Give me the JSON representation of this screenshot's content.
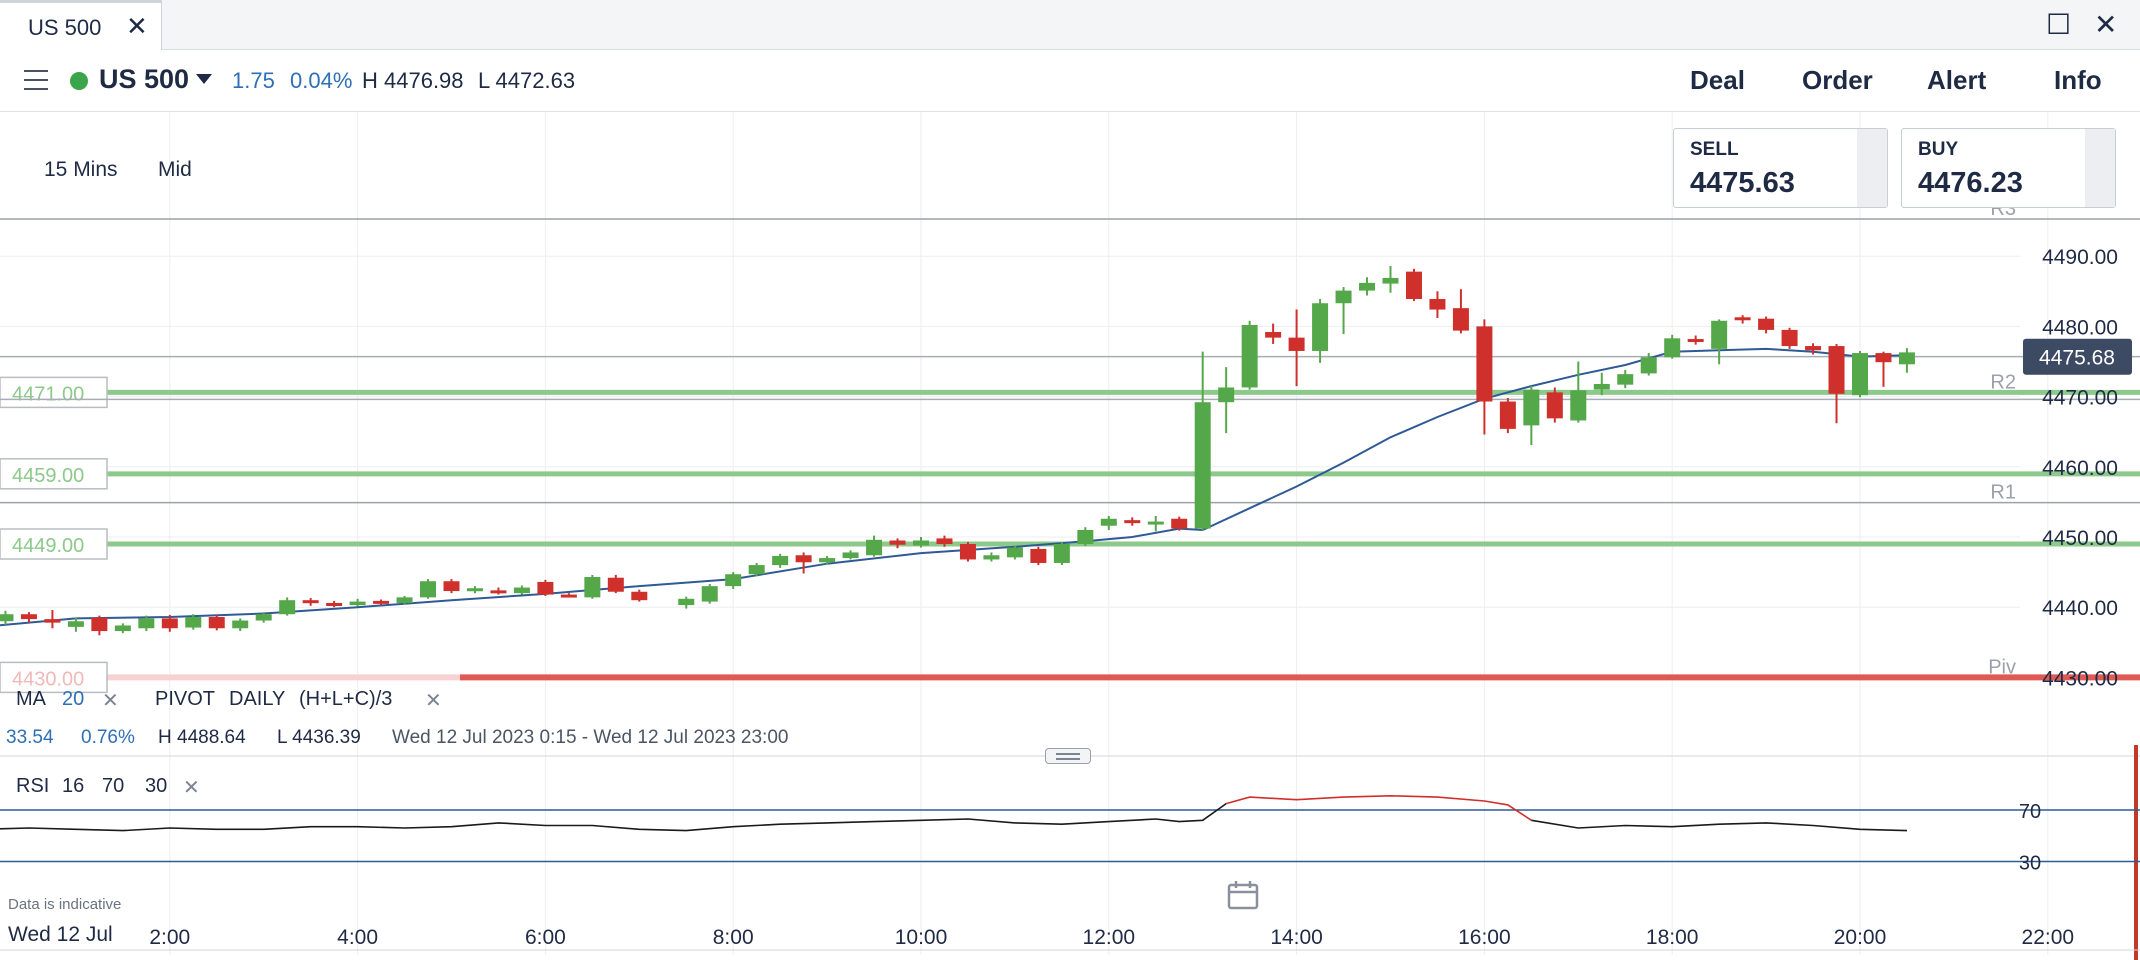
{
  "window": {
    "tab_title": "US 500",
    "close_glyph": "✕",
    "maximize_glyph": "☐",
    "window_close_glyph": "✕"
  },
  "toolbar": {
    "instrument": "US 500",
    "change": "1.75",
    "change_pct": "0.04%",
    "high": "H 4476.98",
    "low": "L 4472.63",
    "actions": [
      "Deal",
      "Order",
      "Alert",
      "Info"
    ]
  },
  "chart_settings": {
    "interval": "15 Mins",
    "price_type": "Mid"
  },
  "quotes": {
    "sell_label": "SELL",
    "sell_price": "4475.63",
    "buy_label": "BUY",
    "buy_price": "4476.23"
  },
  "indicators": {
    "ma_label": "MA",
    "ma_period": "20",
    "pivot_label": "PIVOT",
    "pivot_period": "DAILY",
    "pivot_formula": "(H+L+C)/3",
    "remove_glyph": "✕"
  },
  "stats": {
    "change": "33.54",
    "change_pct": "0.76%",
    "high": "H 4488.64",
    "low": "L 4436.39",
    "range": "Wed 12 Jul 2023 0:15 - Wed 12 Jul 2023 23:00"
  },
  "rsi": {
    "label": "RSI",
    "period": "16",
    "upper": "70",
    "lower": "30"
  },
  "footer": {
    "indicative": "Data is indicative",
    "date": "Wed 12 Jul"
  },
  "colors": {
    "up": "#55a84a",
    "down": "#d0302b",
    "ma": "#2f5a96",
    "pivot_green": "#8cc98a",
    "pivot_red": "#e05a55",
    "rsi": "#1a1a1a",
    "rsi_overbought": "#d0302b"
  },
  "chart_data": {
    "type": "candlestick",
    "time_ticks": [
      "2:00",
      "4:00",
      "6:00",
      "8:00",
      "10:00",
      "12:00",
      "14:00",
      "16:00",
      "18:00",
      "20:00",
      "22:00"
    ],
    "y_ticks": [
      "4490.00",
      "4480.00",
      "4470.00",
      "4460.00",
      "4450.00",
      "4440.00",
      "4430.00"
    ],
    "current_price": "4475.68",
    "ylim": [
      4425,
      4500
    ],
    "pivot_levels": [
      {
        "name": "R3",
        "value": 4495.3
      },
      {
        "name": "R2",
        "value": 4470.6,
        "tag": "4471.00",
        "color": "green"
      },
      {
        "name": "",
        "value": 4459.0,
        "tag": "4459.00",
        "color": "green"
      },
      {
        "name": "R1",
        "value": 4454.9
      },
      {
        "name": "",
        "value": 4449.0,
        "tag": "4449.00",
        "color": "green"
      },
      {
        "name": "Piv",
        "value": 4430.0,
        "tag": "4430.00",
        "color": "red"
      }
    ],
    "candles": [
      [
        0.0,
        4441.5,
        4437.5,
        4442.0,
        4437.0
      ],
      [
        0.25,
        4438.0,
        4439.0,
        4439.5,
        4437.5
      ],
      [
        0.5,
        4439.0,
        4438.3,
        4439.3,
        4437.8
      ],
      [
        0.75,
        4438.3,
        4437.8,
        4439.6,
        4437.0
      ],
      [
        1.0,
        4437.2,
        4438.0,
        4438.5,
        4436.5
      ],
      [
        1.25,
        4438.5,
        4436.6,
        4438.8,
        4436.0
      ],
      [
        1.5,
        4436.6,
        4437.4,
        4437.7,
        4436.3
      ],
      [
        1.75,
        4437.0,
        4438.4,
        4438.8,
        4436.6
      ],
      [
        2.0,
        4438.4,
        4437.0,
        4438.9,
        4436.5
      ],
      [
        2.25,
        4437.1,
        4438.6,
        4439.0,
        4436.8
      ],
      [
        2.5,
        4438.6,
        4437.0,
        4438.9,
        4436.7
      ],
      [
        2.75,
        4437.0,
        4438.1,
        4438.4,
        4436.6
      ],
      [
        3.0,
        4438.1,
        4439.0,
        4439.3,
        4437.8
      ],
      [
        3.25,
        4439.0,
        4441.0,
        4441.4,
        4438.8
      ],
      [
        3.5,
        4441.0,
        4440.6,
        4441.3,
        4440.2
      ],
      [
        3.75,
        4440.6,
        4440.3,
        4440.9,
        4440.0
      ],
      [
        4.0,
        4440.3,
        4440.8,
        4441.2,
        4440.1
      ],
      [
        4.25,
        4440.9,
        4440.6,
        4441.1,
        4440.3
      ],
      [
        4.5,
        4440.6,
        4441.4,
        4441.6,
        4440.4
      ],
      [
        4.75,
        4441.4,
        4443.7,
        4444.0,
        4441.2
      ],
      [
        5.0,
        4443.7,
        4442.3,
        4444.0,
        4442.0
      ],
      [
        5.25,
        4442.3,
        4442.7,
        4443.0,
        4442.0
      ],
      [
        5.5,
        4442.4,
        4442.0,
        4442.8,
        4441.8
      ],
      [
        5.75,
        4442.0,
        4442.8,
        4443.1,
        4441.8
      ],
      [
        6.0,
        4443.6,
        4441.8,
        4443.9,
        4441.6
      ],
      [
        6.25,
        4441.8,
        4441.6,
        4442.0,
        4441.4
      ],
      [
        6.5,
        4441.4,
        4444.3,
        4444.6,
        4441.2
      ],
      [
        6.75,
        4444.2,
        4442.2,
        4444.6,
        4442.0
      ],
      [
        7.0,
        4442.2,
        4441.0,
        4442.5,
        4440.8
      ],
      [
        7.5,
        4440.3,
        4441.2,
        4441.5,
        4439.8
      ],
      [
        7.75,
        4440.8,
        4443.0,
        4443.3,
        4440.5
      ],
      [
        8.0,
        4443.0,
        4444.7,
        4445.0,
        4442.6
      ],
      [
        8.25,
        4444.7,
        4446.0,
        4446.3,
        4444.4
      ],
      [
        8.5,
        4446.0,
        4447.3,
        4447.6,
        4445.6
      ],
      [
        8.75,
        4447.4,
        4446.4,
        4447.8,
        4444.8
      ],
      [
        9.0,
        4446.4,
        4447.0,
        4447.3,
        4446.1
      ],
      [
        9.25,
        4447.0,
        4447.8,
        4448.1,
        4446.8
      ],
      [
        9.5,
        4447.4,
        4449.6,
        4450.2,
        4447.2
      ],
      [
        9.75,
        4449.5,
        4448.9,
        4449.8,
        4448.4
      ],
      [
        10.0,
        4448.8,
        4449.5,
        4450.0,
        4448.5
      ],
      [
        10.25,
        4449.8,
        4449.0,
        4450.2,
        4448.6
      ],
      [
        10.5,
        4449.0,
        4446.8,
        4449.3,
        4446.5
      ],
      [
        10.75,
        4446.8,
        4447.4,
        4447.8,
        4446.5
      ],
      [
        11.0,
        4447.1,
        4448.5,
        4448.8,
        4446.8
      ],
      [
        11.25,
        4448.3,
        4446.3,
        4448.6,
        4446.0
      ],
      [
        11.5,
        4446.3,
        4449.0,
        4449.3,
        4446.0
      ],
      [
        11.75,
        4449.0,
        4451.0,
        4451.4,
        4448.7
      ],
      [
        12.0,
        4451.6,
        4452.6,
        4453.0,
        4451.0
      ],
      [
        12.25,
        4452.4,
        4452.0,
        4452.8,
        4451.6
      ],
      [
        12.5,
        4452.0,
        4452.2,
        4453.0,
        4450.8
      ],
      [
        12.75,
        4452.6,
        4451.2,
        4452.9,
        4450.9
      ],
      [
        13.0,
        4451.2,
        4469.2,
        4476.4,
        4450.9
      ],
      [
        13.25,
        4469.2,
        4471.3,
        4474.2,
        4464.8
      ],
      [
        13.5,
        4471.3,
        4480.2,
        4480.8,
        4471.0
      ],
      [
        13.75,
        4479.2,
        4478.4,
        4480.4,
        4477.5
      ],
      [
        14.0,
        4478.4,
        4476.5,
        4482.4,
        4471.5
      ],
      [
        14.25,
        4476.5,
        4483.3,
        4483.9,
        4474.8
      ],
      [
        14.5,
        4483.3,
        4485.1,
        4485.6,
        4478.9
      ],
      [
        14.75,
        4485.1,
        4486.2,
        4487.0,
        4484.4
      ],
      [
        15.0,
        4486.1,
        4486.9,
        4488.6,
        4484.8
      ],
      [
        15.25,
        4487.8,
        4483.9,
        4488.2,
        4483.6
      ],
      [
        15.5,
        4483.9,
        4482.4,
        4485.0,
        4481.2
      ],
      [
        15.75,
        4482.6,
        4479.4,
        4485.3,
        4479.0
      ],
      [
        16.0,
        4480.0,
        4469.3,
        4481.0,
        4464.6
      ],
      [
        16.25,
        4469.3,
        4465.4,
        4469.8,
        4464.8
      ],
      [
        16.5,
        4465.9,
        4471.0,
        4471.5,
        4463.1
      ],
      [
        16.75,
        4470.6,
        4466.9,
        4471.3,
        4466.3
      ],
      [
        17.0,
        4466.6,
        4470.9,
        4475.0,
        4466.3
      ],
      [
        17.25,
        4471.0,
        4471.8,
        4473.4,
        4470.2
      ],
      [
        17.5,
        4471.7,
        4473.2,
        4473.8,
        4471.2
      ],
      [
        17.75,
        4473.3,
        4475.6,
        4476.2,
        4473.0
      ],
      [
        18.0,
        4475.6,
        4478.3,
        4478.8,
        4475.4
      ],
      [
        18.25,
        4478.2,
        4477.9,
        4478.7,
        4477.4
      ],
      [
        18.5,
        4476.8,
        4480.8,
        4481.0,
        4474.6
      ],
      [
        18.75,
        4481.3,
        4480.9,
        4481.6,
        4480.4
      ],
      [
        19.0,
        4481.1,
        4479.5,
        4481.4,
        4479.0
      ],
      [
        19.25,
        4479.5,
        4477.2,
        4479.8,
        4476.8
      ],
      [
        19.5,
        4477.2,
        4476.6,
        4477.6,
        4476.0
      ],
      [
        19.75,
        4477.2,
        4470.4,
        4477.5,
        4466.2
      ],
      [
        20.0,
        4470.2,
        4476.2,
        4476.5,
        4469.9
      ],
      [
        20.25,
        4476.2,
        4474.9,
        4476.4,
        4471.4
      ],
      [
        20.5,
        4474.6,
        4476.3,
        4476.9,
        4473.4
      ]
    ],
    "dojis": [
      12.75,
      13.0
    ],
    "ma": [
      [
        0,
        4437.2
      ],
      [
        1,
        4438.4
      ],
      [
        2,
        4438.6
      ],
      [
        3,
        4439.1
      ],
      [
        4,
        4440.0
      ],
      [
        5,
        4441.0
      ],
      [
        6,
        4441.9
      ],
      [
        7,
        4443.0
      ],
      [
        8,
        4444.0
      ],
      [
        9,
        4446.2
      ],
      [
        10,
        4447.7
      ],
      [
        11,
        4448.6
      ],
      [
        11.75,
        4449.4
      ],
      [
        12.25,
        4450.0
      ],
      [
        12.75,
        4451.2
      ],
      [
        13.0,
        4451.0
      ],
      [
        13.5,
        4454.1
      ],
      [
        14.0,
        4457.2
      ],
      [
        14.5,
        4460.6
      ],
      [
        15.0,
        4464.2
      ],
      [
        15.5,
        4467.1
      ],
      [
        16.0,
        4469.7
      ],
      [
        16.5,
        4471.5
      ],
      [
        17.0,
        4473.1
      ],
      [
        17.5,
        4474.5
      ],
      [
        18.0,
        4476.4
      ],
      [
        18.5,
        4476.6
      ],
      [
        19.0,
        4476.8
      ],
      [
        19.5,
        4476.4
      ],
      [
        20.0,
        4475.7
      ],
      [
        20.25,
        4475.8
      ],
      [
        20.5,
        4475.9
      ]
    ],
    "rsi": {
      "ylim": [
        0,
        100
      ],
      "levels": [
        70,
        30
      ],
      "values": [
        [
          0,
          55
        ],
        [
          0.5,
          56
        ],
        [
          1,
          55
        ],
        [
          1.5,
          54
        ],
        [
          2,
          56
        ],
        [
          2.5,
          55
        ],
        [
          3,
          55
        ],
        [
          3.5,
          57
        ],
        [
          4,
          57
        ],
        [
          4.5,
          56
        ],
        [
          5,
          57
        ],
        [
          5.5,
          60
        ],
        [
          6,
          58
        ],
        [
          6.5,
          58
        ],
        [
          7,
          55
        ],
        [
          7.5,
          54
        ],
        [
          8,
          57
        ],
        [
          8.5,
          59
        ],
        [
          9,
          60
        ],
        [
          9.5,
          61
        ],
        [
          10,
          62
        ],
        [
          10.5,
          63
        ],
        [
          11,
          60
        ],
        [
          11.5,
          59
        ],
        [
          12,
          61
        ],
        [
          12.5,
          63
        ],
        [
          12.75,
          61
        ],
        [
          13.0,
          62
        ],
        [
          13.25,
          75
        ],
        [
          13.5,
          80
        ],
        [
          14.0,
          78
        ],
        [
          14.5,
          80
        ],
        [
          15.0,
          81
        ],
        [
          15.5,
          80
        ],
        [
          16.0,
          77
        ],
        [
          16.25,
          74
        ],
        [
          16.5,
          62
        ],
        [
          17.0,
          56
        ],
        [
          17.5,
          58
        ],
        [
          18.0,
          57
        ],
        [
          18.5,
          59
        ],
        [
          19.0,
          60
        ],
        [
          19.5,
          58
        ],
        [
          20.0,
          55
        ],
        [
          20.5,
          54
        ]
      ]
    }
  }
}
